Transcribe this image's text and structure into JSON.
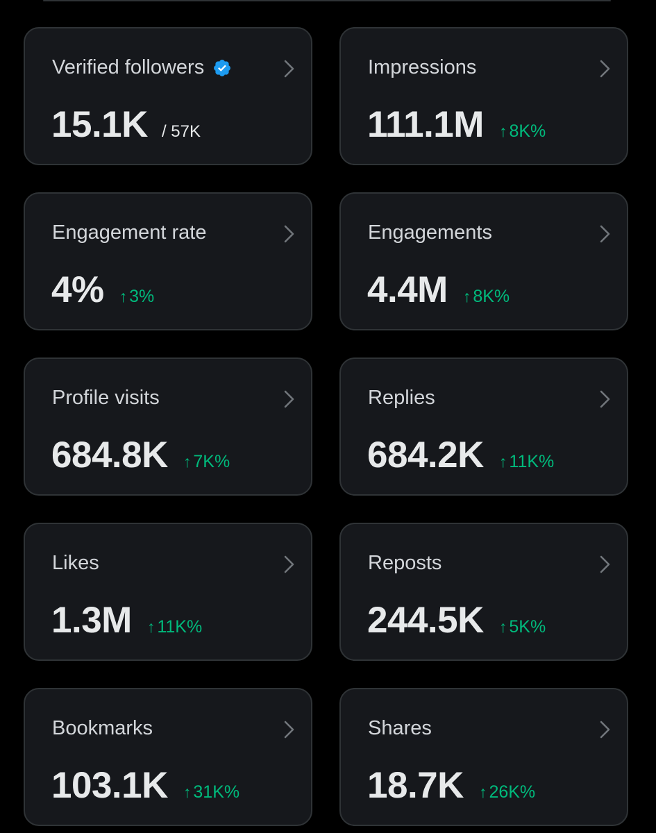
{
  "colors": {
    "background": "#000000",
    "card": "#16181c",
    "border": "#2f3336",
    "title": "#d3d6da",
    "value": "#e7e9ea",
    "positive": "#00ba7c",
    "verified": "#1d9bf0"
  },
  "icons": {
    "verified": "verified-badge-icon",
    "chevron": "chevron-right-icon",
    "up": "arrow-up-icon"
  },
  "cards": [
    {
      "title": "Verified followers",
      "value": "15.1K",
      "sub": "/ 57K",
      "verified": true
    },
    {
      "title": "Impressions",
      "value": "111.1M",
      "arrow": "↑",
      "delta": "8K%"
    },
    {
      "title": "Engagement rate",
      "value": "4%",
      "arrow": "↑",
      "delta": "3%"
    },
    {
      "title": "Engagements",
      "value": "4.4M",
      "arrow": "↑",
      "delta": "8K%"
    },
    {
      "title": "Profile visits",
      "value": "684.8K",
      "arrow": "↑",
      "delta": "7K%"
    },
    {
      "title": "Replies",
      "value": "684.2K",
      "arrow": "↑",
      "delta": "11K%"
    },
    {
      "title": "Likes",
      "value": "1.3M",
      "arrow": "↑",
      "delta": "11K%"
    },
    {
      "title": "Reposts",
      "value": "244.5K",
      "arrow": "↑",
      "delta": "5K%"
    },
    {
      "title": "Bookmarks",
      "value": "103.1K",
      "arrow": "↑",
      "delta": "31K%"
    },
    {
      "title": "Shares",
      "value": "18.7K",
      "arrow": "↑",
      "delta": "26K%"
    }
  ]
}
